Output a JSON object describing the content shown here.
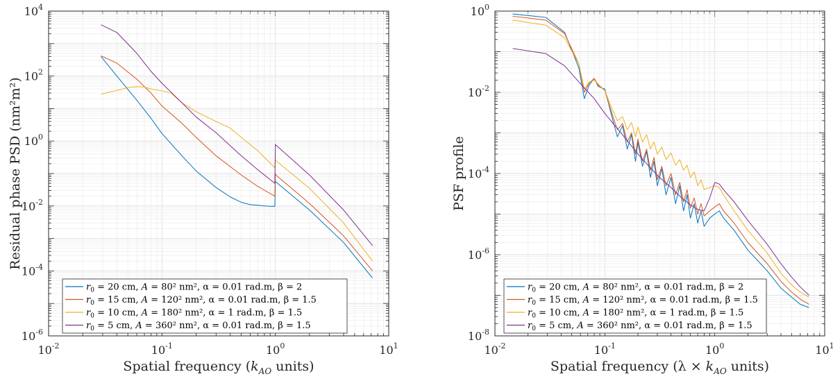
{
  "chart_data": [
    {
      "type": "line",
      "xscale": "log",
      "yscale": "log",
      "xlim": [
        0.01,
        10
      ],
      "ylim": [
        1e-06,
        10000.0
      ],
      "xlabel": "Spatial frequency (k_AO units)",
      "ylabel": "Residual phase PSD (nm²m²)",
      "x_ticks": [
        {
          "base": "10",
          "exp": "-2"
        },
        {
          "base": "10",
          "exp": "-1"
        },
        {
          "base": "10",
          "exp": "0"
        },
        {
          "base": "10",
          "exp": "1"
        }
      ],
      "y_ticks": [
        {
          "base": "10",
          "exp": "-6"
        },
        {
          "base": "10",
          "exp": "-4"
        },
        {
          "base": "10",
          "exp": "-2"
        },
        {
          "base": "10",
          "exp": "0"
        },
        {
          "base": "10",
          "exp": "2"
        },
        {
          "base": "10",
          "exp": "4"
        }
      ],
      "legend": {
        "location": "bottom-left",
        "entries": [
          "r0 = 20 cm, A = 80² nm², α = 0.01 rad.m, β = 2",
          "r0 = 15 cm, A = 120² nm², α = 0.01 rad.m, β = 1.5",
          "r0 = 10 cm, A = 180² nm², α = 1 rad.m, β = 1.5",
          "r0 = 5 cm, A = 360² nm², α = 0.01 rad.m, β = 1.5"
        ]
      },
      "series": [
        {
          "name": "r0 = 20 cm",
          "color": "#0072BD",
          "x": [
            0.029,
            0.04,
            0.06,
            0.08,
            0.1,
            0.15,
            0.2,
            0.3,
            0.4,
            0.5,
            0.6,
            0.7,
            0.8,
            0.9,
            0.99,
            1.0,
            1.01,
            2,
            4,
            7.2
          ],
          "y": [
            400,
            100,
            18,
            5,
            1.7,
            0.35,
            0.12,
            0.037,
            0.019,
            0.013,
            0.011,
            0.0105,
            0.01,
            0.0098,
            0.0097,
            0.06,
            0.055,
            0.0075,
            0.00075,
            6e-05
          ]
        },
        {
          "name": "r0 = 15 cm",
          "color": "#D95319",
          "x": [
            0.029,
            0.04,
            0.06,
            0.08,
            0.1,
            0.15,
            0.2,
            0.3,
            0.5,
            0.7,
            0.99,
            1.0,
            1.01,
            2,
            4,
            7.2
          ],
          "y": [
            420,
            250,
            80,
            30,
            12,
            3.5,
            1.3,
            0.35,
            0.09,
            0.04,
            0.02,
            0.1,
            0.09,
            0.012,
            0.0012,
            0.0001
          ]
        },
        {
          "name": "r0 = 10 cm",
          "color": "#EDB120",
          "x": [
            0.029,
            0.04,
            0.05,
            0.06,
            0.07,
            0.08,
            0.1,
            0.12,
            0.15,
            0.2,
            0.3,
            0.4,
            0.5,
            0.7,
            0.99,
            1.0,
            1.01,
            2,
            4,
            7.2
          ],
          "y": [
            28,
            36,
            44,
            47,
            46,
            40,
            35,
            30,
            15,
            8,
            4,
            2.5,
            1.3,
            0.5,
            0.15,
            0.28,
            0.25,
            0.035,
            0.003,
            0.0002
          ]
        },
        {
          "name": "r0 = 5 cm",
          "color": "#7E2F8E",
          "x": [
            0.029,
            0.04,
            0.06,
            0.08,
            0.1,
            0.15,
            0.2,
            0.3,
            0.5,
            0.7,
            0.99,
            1.0,
            1.01,
            2,
            4,
            7.2
          ],
          "y": [
            3800,
            2200,
            500,
            140,
            60,
            15,
            5.5,
            1.8,
            0.35,
            0.13,
            0.05,
            0.8,
            0.75,
            0.09,
            0.0075,
            0.0006
          ]
        }
      ]
    },
    {
      "type": "line",
      "xscale": "log",
      "yscale": "log",
      "xlim": [
        0.01,
        10
      ],
      "ylim": [
        1e-08,
        1
      ],
      "xlabel": "Spatial frequency (λ × k_AO units)",
      "ylabel": "PSF profile",
      "x_ticks": [
        {
          "base": "10",
          "exp": "-2"
        },
        {
          "base": "10",
          "exp": "-1"
        },
        {
          "base": "10",
          "exp": "0"
        },
        {
          "base": "10",
          "exp": "1"
        }
      ],
      "y_ticks": [
        {
          "base": "10",
          "exp": "-8"
        },
        {
          "base": "10",
          "exp": "-6"
        },
        {
          "base": "10",
          "exp": "-4"
        },
        {
          "base": "10",
          "exp": "-2"
        },
        {
          "base": "10",
          "exp": "0"
        }
      ],
      "legend": {
        "location": "bottom-left",
        "entries": [
          "r0 = 20 cm, A = 80² nm², α = 0.01 rad.m, β = 2",
          "r0 = 15 cm, A = 120² nm², α = 0.01 rad.m, β = 1.5",
          "r0 = 10 cm, A = 180² nm², α = 1 rad.m, β = 1.5",
          "r0 = 5 cm, A = 360² nm², α = 0.01 rad.m, β = 1.5"
        ]
      },
      "series": [
        {
          "name": "r0 = 20 cm",
          "color": "#0072BD",
          "x": [
            0.0145,
            0.029,
            0.043,
            0.058,
            0.065,
            0.072,
            0.08,
            0.087,
            0.1,
            0.116,
            0.13,
            0.145,
            0.16,
            0.175,
            0.19,
            0.2,
            0.22,
            0.24,
            0.26,
            0.28,
            0.3,
            0.33,
            0.36,
            0.4,
            0.44,
            0.48,
            0.52,
            0.56,
            0.6,
            0.65,
            0.7,
            0.75,
            0.8,
            0.9,
            1.0,
            1.1,
            1.2,
            1.5,
            2,
            3,
            4,
            5,
            6,
            7.2
          ],
          "y": [
            0.85,
            0.7,
            0.3,
            0.04,
            0.007,
            0.015,
            0.022,
            0.014,
            0.012,
            0.0025,
            0.0008,
            0.0015,
            0.0004,
            0.0009,
            0.0002,
            0.0006,
            0.00015,
            0.00035,
            8e-05,
            0.0002,
            5e-05,
            0.00013,
            3e-05,
            8e-05,
            1.8e-05,
            5e-05,
            1.2e-05,
            3e-05,
            8e-06,
            1.8e-05,
            6e-06,
            1.2e-05,
            5e-06,
            8e-06,
            1e-05,
            1.2e-05,
            8e-06,
            4e-06,
            1.3e-06,
            4e-07,
            1.5e-07,
            9e-08,
            6e-08,
            5e-08
          ]
        },
        {
          "name": "r0 = 15 cm",
          "color": "#D95319",
          "x": [
            0.0145,
            0.029,
            0.043,
            0.058,
            0.065,
            0.072,
            0.08,
            0.087,
            0.1,
            0.116,
            0.13,
            0.145,
            0.16,
            0.175,
            0.19,
            0.2,
            0.22,
            0.24,
            0.26,
            0.28,
            0.3,
            0.33,
            0.36,
            0.4,
            0.44,
            0.48,
            0.52,
            0.56,
            0.6,
            0.65,
            0.7,
            0.75,
            0.8,
            0.9,
            1.0,
            1.1,
            1.2,
            1.5,
            2,
            3,
            4,
            5,
            6,
            7.2
          ],
          "y": [
            0.75,
            0.6,
            0.28,
            0.05,
            0.01,
            0.017,
            0.022,
            0.015,
            0.011,
            0.003,
            0.0012,
            0.0017,
            0.0006,
            0.001,
            0.0003,
            0.0007,
            0.0002,
            0.0004,
            0.00012,
            0.00025,
            7e-05,
            0.00015,
            5e-05,
            0.0001,
            3e-05,
            6e-05,
            2e-05,
            4e-05,
            1.4e-05,
            2.5e-05,
            1e-05,
            1.8e-05,
            9e-06,
            1.2e-05,
            1.5e-05,
            1.8e-05,
            1.2e-05,
            6e-06,
            2e-06,
            6e-07,
            2.2e-07,
            1.2e-07,
            8e-08,
            6e-08
          ]
        },
        {
          "name": "r0 = 10 cm",
          "color": "#EDB120",
          "x": [
            0.0145,
            0.029,
            0.043,
            0.058,
            0.065,
            0.072,
            0.08,
            0.087,
            0.1,
            0.116,
            0.13,
            0.145,
            0.16,
            0.175,
            0.19,
            0.2,
            0.22,
            0.24,
            0.26,
            0.28,
            0.3,
            0.33,
            0.36,
            0.4,
            0.44,
            0.48,
            0.52,
            0.56,
            0.6,
            0.65,
            0.7,
            0.75,
            0.8,
            0.9,
            1.0,
            1.1,
            1.2,
            1.5,
            2,
            3,
            4,
            5,
            6,
            7.2
          ],
          "y": [
            0.6,
            0.45,
            0.22,
            0.05,
            0.012,
            0.018,
            0.02,
            0.016,
            0.011,
            0.004,
            0.002,
            0.0025,
            0.0012,
            0.0018,
            0.0008,
            0.0014,
            0.0006,
            0.0009,
            0.0004,
            0.0006,
            0.0003,
            0.00045,
            0.00022,
            0.00032,
            0.00016,
            0.00022,
            0.00012,
            0.00016,
            8e-05,
            0.00011,
            5e-05,
            7e-05,
            4e-05,
            4.5e-05,
            5e-05,
            4.5e-05,
            3e-05,
            1.2e-05,
            4e-06,
            1.1e-06,
            3.5e-07,
            1.8e-07,
            1.2e-07,
            9e-08
          ]
        },
        {
          "name": "r0 = 5 cm",
          "color": "#7E2F8E",
          "x": [
            0.0145,
            0.029,
            0.043,
            0.058,
            0.08,
            0.1,
            0.15,
            0.2,
            0.3,
            0.4,
            0.5,
            0.6,
            0.7,
            0.8,
            0.9,
            1.0,
            1.1,
            1.2,
            1.5,
            2,
            3,
            4,
            5,
            6,
            7.2
          ],
          "y": [
            0.12,
            0.09,
            0.045,
            0.018,
            0.007,
            0.003,
            0.0008,
            0.0003,
            9e-05,
            4.5e-05,
            2.5e-05,
            1.7e-05,
            1.3e-05,
            1.2e-05,
            2.5e-05,
            6e-05,
            5.5e-05,
            4e-05,
            2e-05,
            7e-06,
            1.8e-06,
            6e-07,
            2.8e-07,
            1.6e-07,
            1e-07
          ]
        }
      ]
    }
  ]
}
